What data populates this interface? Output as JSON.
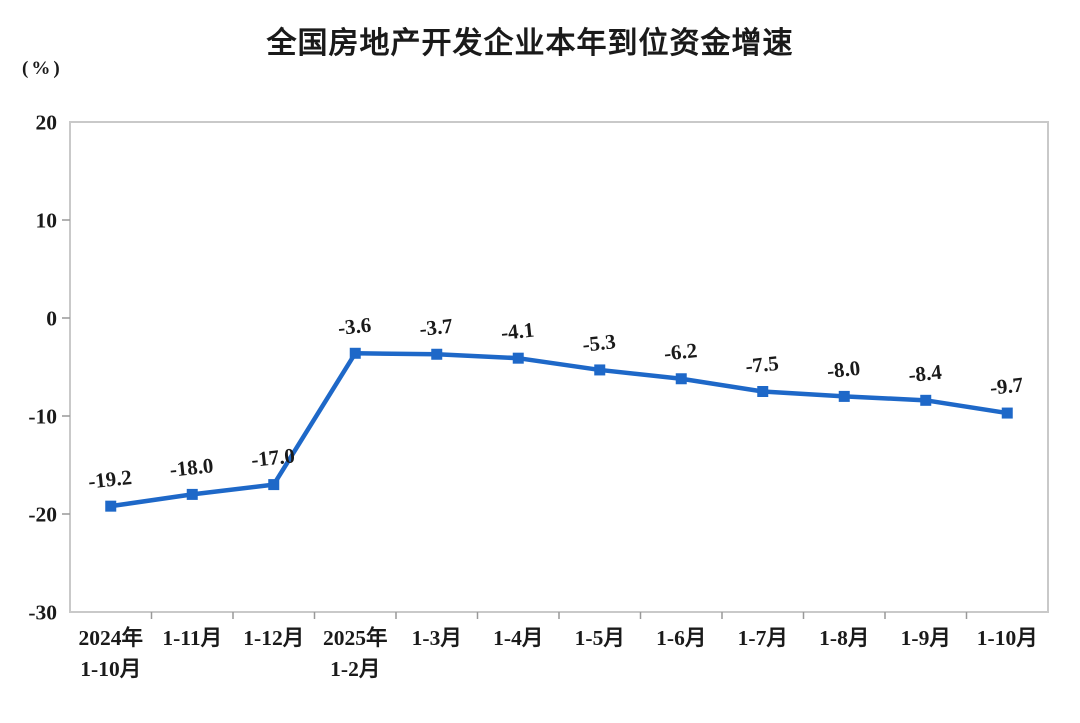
{
  "chart": {
    "title": "全国房地产开发企业本年到位资金增速",
    "unit_label": "(%)"
  },
  "chart_data": {
    "type": "line",
    "title": "全国房地产开发企业本年到位资金增速",
    "ylabel": "(%)",
    "categories": [
      [
        "2024年",
        "1-10月"
      ],
      [
        "1-11月"
      ],
      [
        "1-12月"
      ],
      [
        "2025年",
        "1-2月"
      ],
      [
        "1-3月"
      ],
      [
        "1-4月"
      ],
      [
        "1-5月"
      ],
      [
        "1-6月"
      ],
      [
        "1-7月"
      ],
      [
        "1-8月"
      ],
      [
        "1-9月"
      ],
      [
        "1-10月"
      ]
    ],
    "values": [
      -19.2,
      -18.0,
      -17.0,
      -3.6,
      -3.7,
      -4.1,
      -5.3,
      -6.2,
      -7.5,
      -8.0,
      -8.4,
      -9.7
    ],
    "value_labels": [
      "-19.2",
      "-18.0",
      "-17.0",
      "-3.6",
      "-3.7",
      "-4.1",
      "-5.3",
      "-6.2",
      "-7.5",
      "-8.0",
      "-8.4",
      "-9.7"
    ],
    "y_ticks": [
      20,
      10,
      0,
      -10,
      -20,
      -30
    ],
    "ylim": [
      -30,
      20
    ],
    "grid": false,
    "legend_position": "none",
    "line_color": "#1e68c8",
    "marker": "square",
    "axis_color": "#c9c9c9",
    "tick_color": "#999999"
  }
}
